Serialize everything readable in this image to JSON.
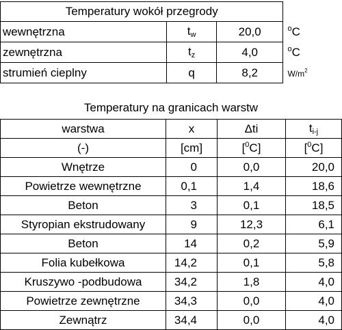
{
  "table1": {
    "title": "Temperatury wokół przegrody",
    "rows": [
      {
        "name": "wewnętrzna",
        "symbol": "t",
        "symbol_sub": "w",
        "value": "20,0",
        "unit_sup": "o",
        "unit": "C"
      },
      {
        "name": "zewnętrzna",
        "symbol": "t",
        "symbol_sub": "z",
        "value": "4,0",
        "unit_sup": "o",
        "unit": "C"
      },
      {
        "name": "strumień cieplny",
        "symbol": "q",
        "symbol_sub": "",
        "value": "8,2",
        "unit": "W/m",
        "unit_sup": "2"
      }
    ]
  },
  "table2": {
    "title": "Temperatury na granicach warstw",
    "headers": {
      "warstwa": "warstwa",
      "x": "x",
      "dti": "Δti",
      "t": "t",
      "t_sub": "i-j"
    },
    "units": {
      "warstwa": "(-)",
      "x": "[cm]",
      "dti_open": "[",
      "dti_sup": "0",
      "dti_close": "C]",
      "t_open": "[",
      "t_sup": "0",
      "t_close": "C]"
    },
    "rows": [
      {
        "warstwa": "Wnętrze",
        "x": "0",
        "dti": "0,0",
        "t": "20,0"
      },
      {
        "warstwa": "Powietrze wewnętrzne",
        "x": "0,1",
        "dti": "1,4",
        "t": "18,6"
      },
      {
        "warstwa": "Beton",
        "x": "3",
        "dti": "0,1",
        "t": "18,5"
      },
      {
        "warstwa": "Styropian ekstrudowany",
        "x": "9",
        "dti": "12,3",
        "t": "6,1"
      },
      {
        "warstwa": "Beton",
        "x": "14",
        "dti": "0,2",
        "t": "5,9"
      },
      {
        "warstwa": "Folia kubełkowa",
        "x": "14,2",
        "dti": "0,1",
        "t": "5,8"
      },
      {
        "warstwa": "Kruszywo -podbudowa",
        "x": "34,2",
        "dti": "1,8",
        "t": "4,0"
      },
      {
        "warstwa": "Powietrze zewnętrzne",
        "x": "34,3",
        "dti": "0,0",
        "t": "4,0"
      },
      {
        "warstwa": "Zewnątrz",
        "x": "34,4",
        "dti": "0,0",
        "t": "4,0"
      }
    ]
  }
}
